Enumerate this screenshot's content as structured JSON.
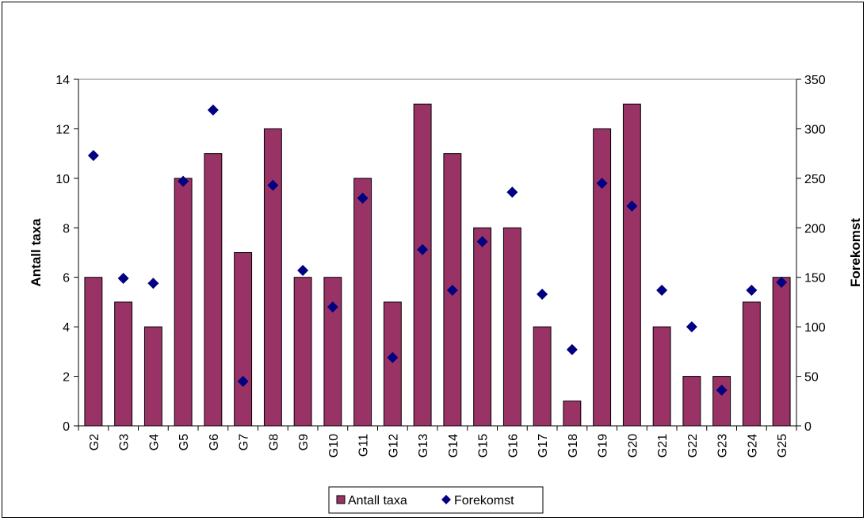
{
  "chart_data": {
    "type": "bar",
    "categories": [
      "G2",
      "G3",
      "G4",
      "G5",
      "G6",
      "G7",
      "G8",
      "G9",
      "G10",
      "G11",
      "G12",
      "G13",
      "G14",
      "G15",
      "G16",
      "G17",
      "G18",
      "G19",
      "G20",
      "G21",
      "G22",
      "G23",
      "G24",
      "G25"
    ],
    "series": [
      {
        "name": "Antall taxa",
        "type": "bar",
        "axis": "left",
        "color": "#993366",
        "values": [
          6,
          5,
          4,
          10,
          11,
          7,
          12,
          6,
          6,
          10,
          5,
          13,
          11,
          8,
          8,
          4,
          1,
          12,
          13,
          4,
          2,
          2,
          5,
          6
        ]
      },
      {
        "name": "Forekomst",
        "type": "scatter",
        "axis": "right",
        "color": "#000080",
        "marker": "diamond",
        "values": [
          273,
          149,
          144,
          247,
          319,
          45,
          243,
          157,
          120,
          230,
          69,
          178,
          137,
          186,
          236,
          133,
          77,
          245,
          222,
          137,
          100,
          36,
          137,
          145
        ]
      }
    ],
    "ylabel": "Antall taxa",
    "y2label": "Forekomst",
    "ylim": [
      0,
      14
    ],
    "y2lim": [
      0,
      350
    ],
    "yticks": [
      0,
      2,
      4,
      6,
      8,
      10,
      12,
      14
    ],
    "y2ticks": [
      0,
      50,
      100,
      150,
      200,
      250,
      300,
      350
    ],
    "grid": false,
    "legend_position": "bottom-center"
  }
}
